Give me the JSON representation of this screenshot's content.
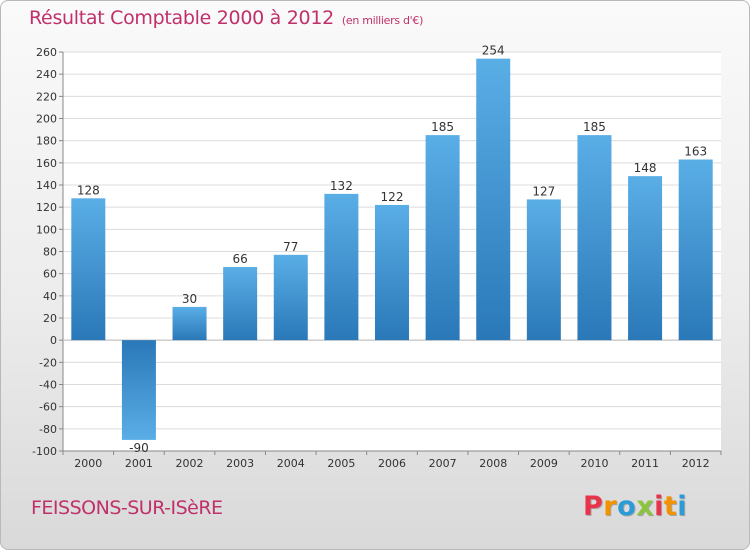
{
  "header": {
    "title": "Résultat Comptable 2000 à 2012",
    "unit": "(en milliers d'€)"
  },
  "footer": {
    "commune": "FEISSONS-SUR-ISèRE",
    "logo_letters": [
      "P",
      "r",
      "o",
      "x",
      "i",
      "t",
      "i"
    ],
    "logo_colors": [
      "#e8334a",
      "#f39200",
      "#2a9bd6",
      "#8bc53f",
      "#e8334a",
      "#f39200",
      "#2a9bd6"
    ]
  },
  "chart_data": {
    "type": "bar",
    "title": "Résultat Comptable 2000 à 2012",
    "categories": [
      "2000",
      "2001",
      "2002",
      "2003",
      "2004",
      "2005",
      "2006",
      "2007",
      "2008",
      "2009",
      "2010",
      "2011",
      "2012"
    ],
    "values": [
      128,
      -90,
      30,
      66,
      77,
      132,
      122,
      185,
      254,
      127,
      185,
      148,
      163
    ],
    "ylim": [
      -100,
      260
    ],
    "yticks": [
      -100,
      -80,
      -60,
      -40,
      -20,
      0,
      20,
      40,
      60,
      80,
      100,
      120,
      140,
      160,
      180,
      200,
      220,
      240,
      260
    ],
    "grid": "horizontal",
    "legend": "none",
    "bar_color_top": "#5aaee6",
    "bar_color_bottom": "#2a78b8"
  }
}
